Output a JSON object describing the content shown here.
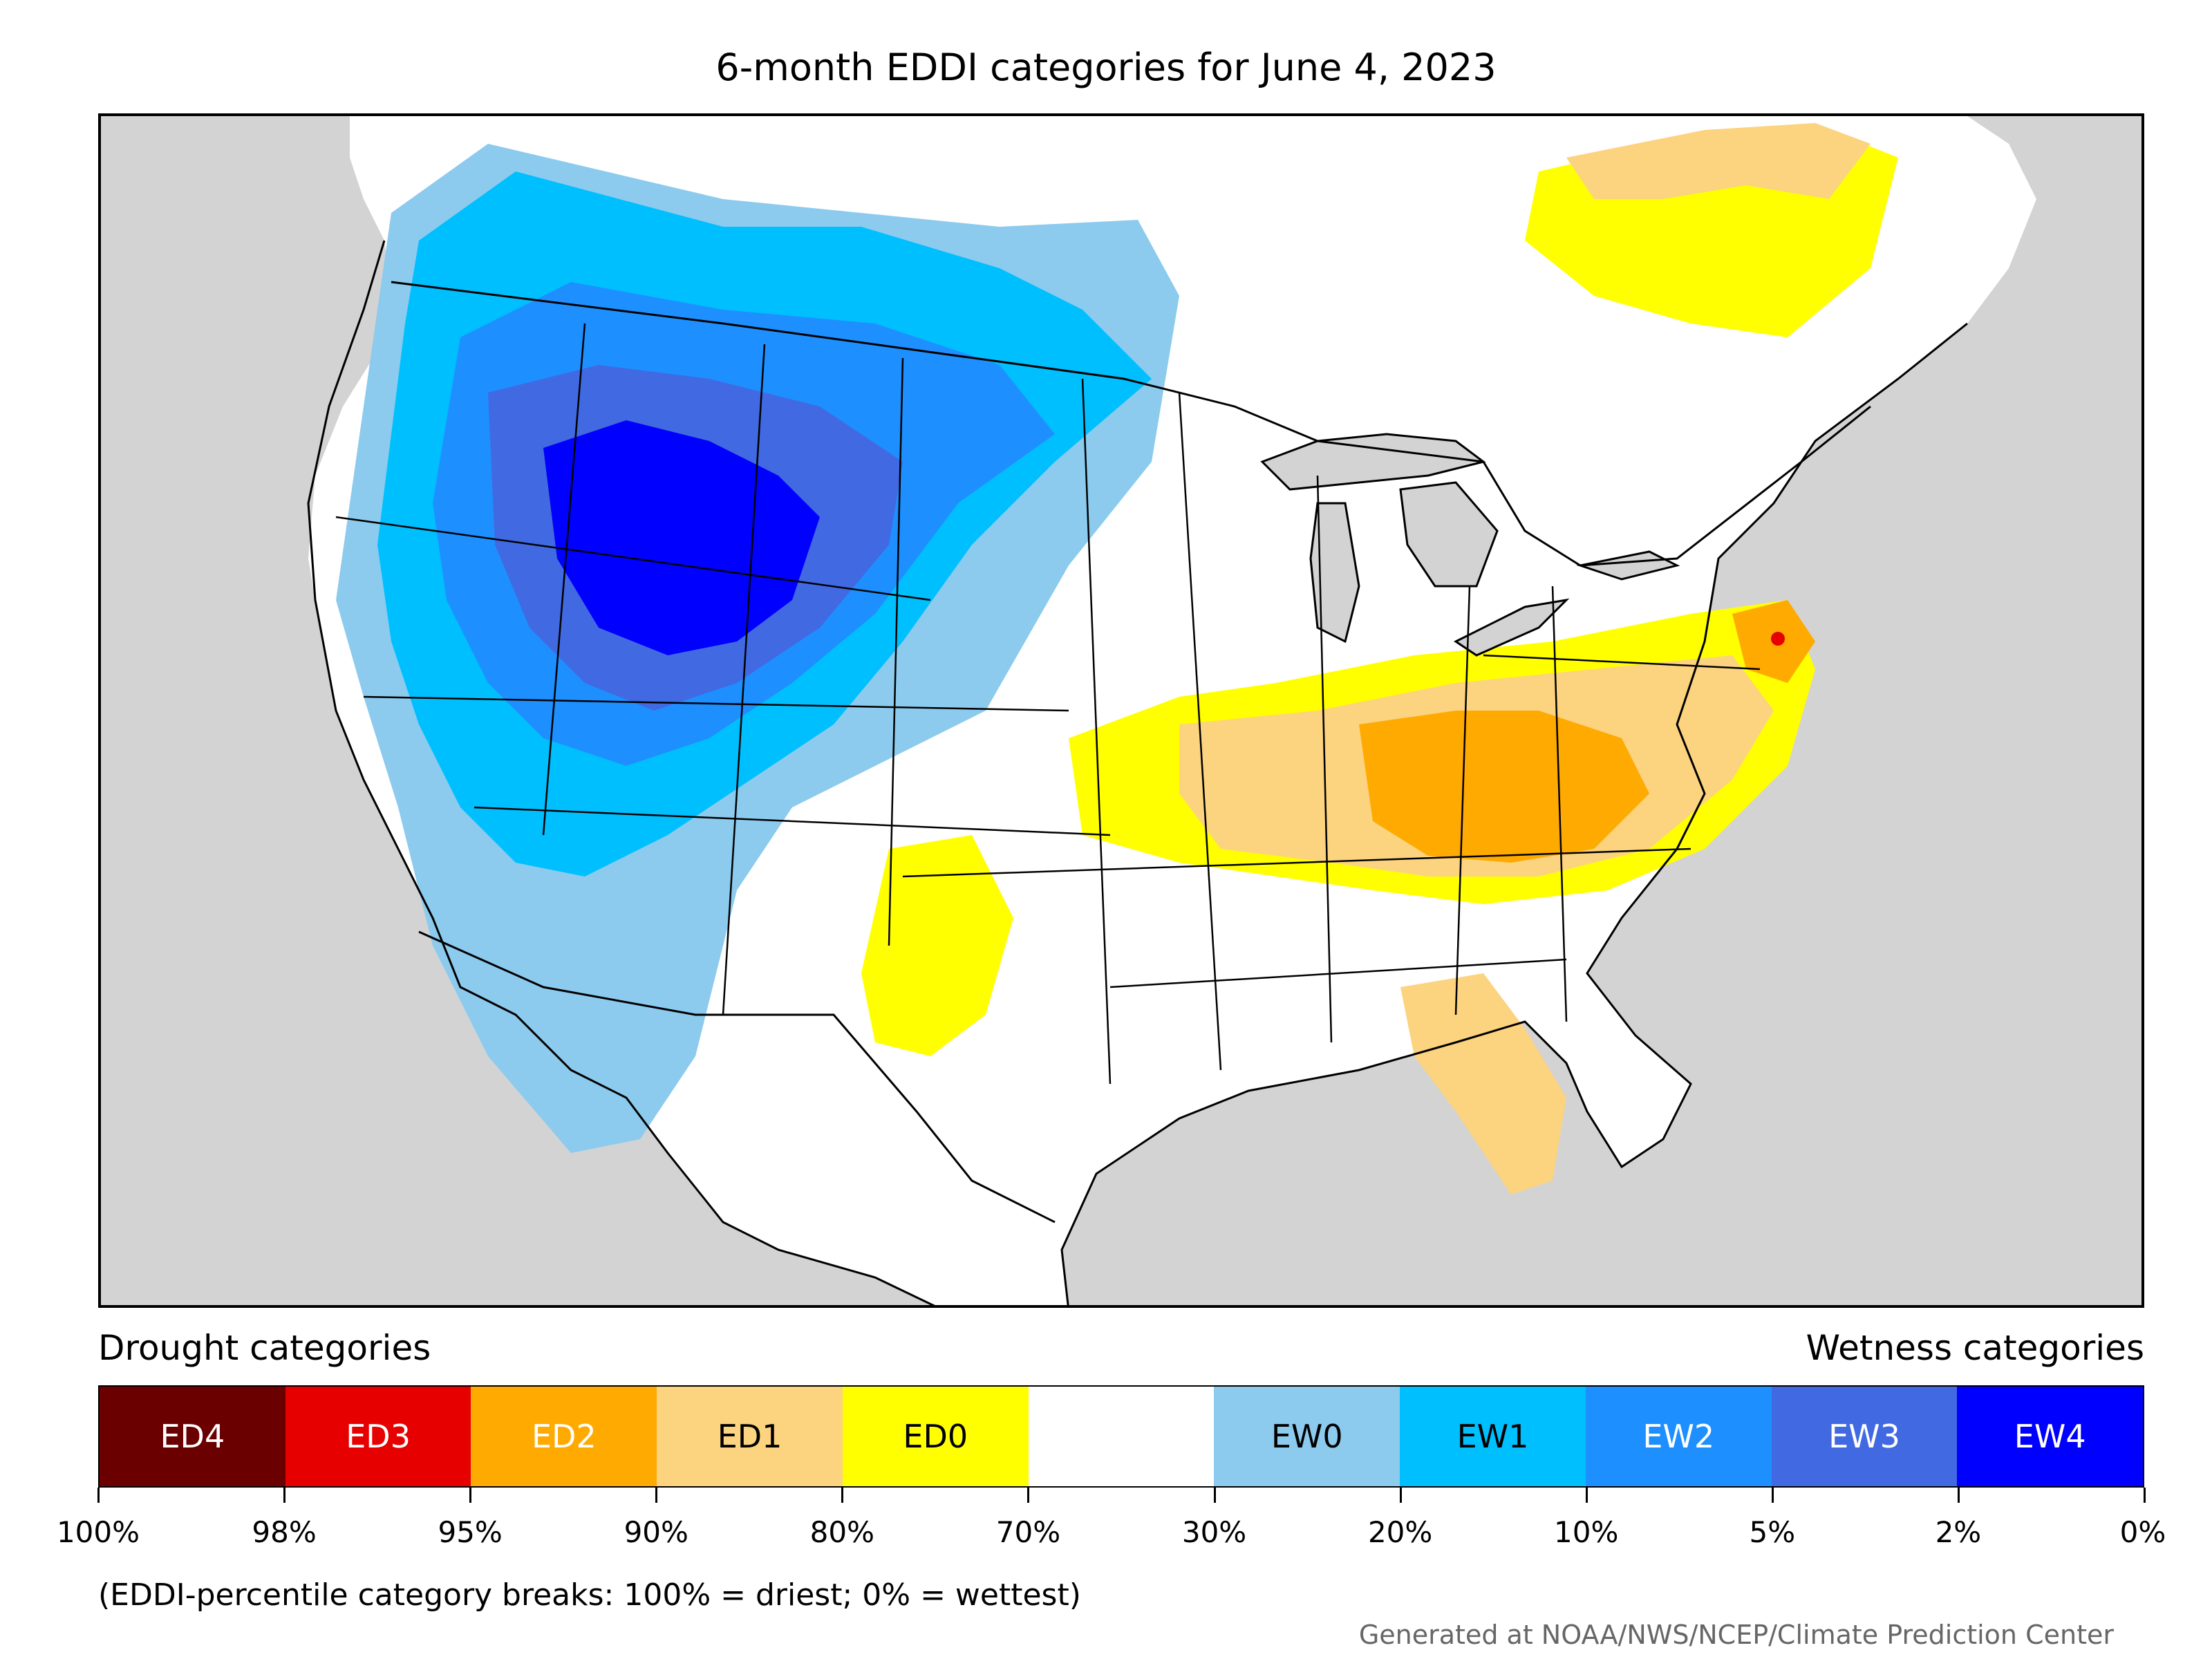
{
  "title": "6-month EDDI categories for June 4, 2023",
  "legend": {
    "drought_heading": "Drought categories",
    "wetness_heading": "Wetness categories",
    "categories": [
      {
        "label": "ED4",
        "color": "#6b0000",
        "text_color": "#ffffff"
      },
      {
        "label": "ED3",
        "color": "#e60000",
        "text_color": "#ffffff"
      },
      {
        "label": "ED2",
        "color": "#ffaa00",
        "text_color": "#ffffff"
      },
      {
        "label": "ED1",
        "color": "#fcd37f",
        "text_color": "#000000"
      },
      {
        "label": "ED0",
        "color": "#ffff00",
        "text_color": "#000000"
      },
      {
        "label": "",
        "color": "#ffffff",
        "text_color": "#000000"
      },
      {
        "label": "EW0",
        "color": "#8ccbee",
        "text_color": "#000000"
      },
      {
        "label": "EW1",
        "color": "#00bfff",
        "text_color": "#000000"
      },
      {
        "label": "EW2",
        "color": "#1e8fff",
        "text_color": "#ffffff"
      },
      {
        "label": "EW3",
        "color": "#4169e1",
        "text_color": "#ffffff"
      },
      {
        "label": "EW4",
        "color": "#0000ff",
        "text_color": "#ffffff"
      }
    ],
    "breaks": [
      "100%",
      "98%",
      "95%",
      "90%",
      "80%",
      "70%",
      "30%",
      "20%",
      "10%",
      "5%",
      "2%",
      "0%"
    ]
  },
  "note": "(EDDI-percentile category breaks: 100% = driest; 0% = wettest)",
  "credit": "Generated at NOAA/NWS/NCEP/Climate Prediction Center",
  "colors": {
    "background_land_outside": "#d3d3d3",
    "water": "#d3d3d3"
  }
}
